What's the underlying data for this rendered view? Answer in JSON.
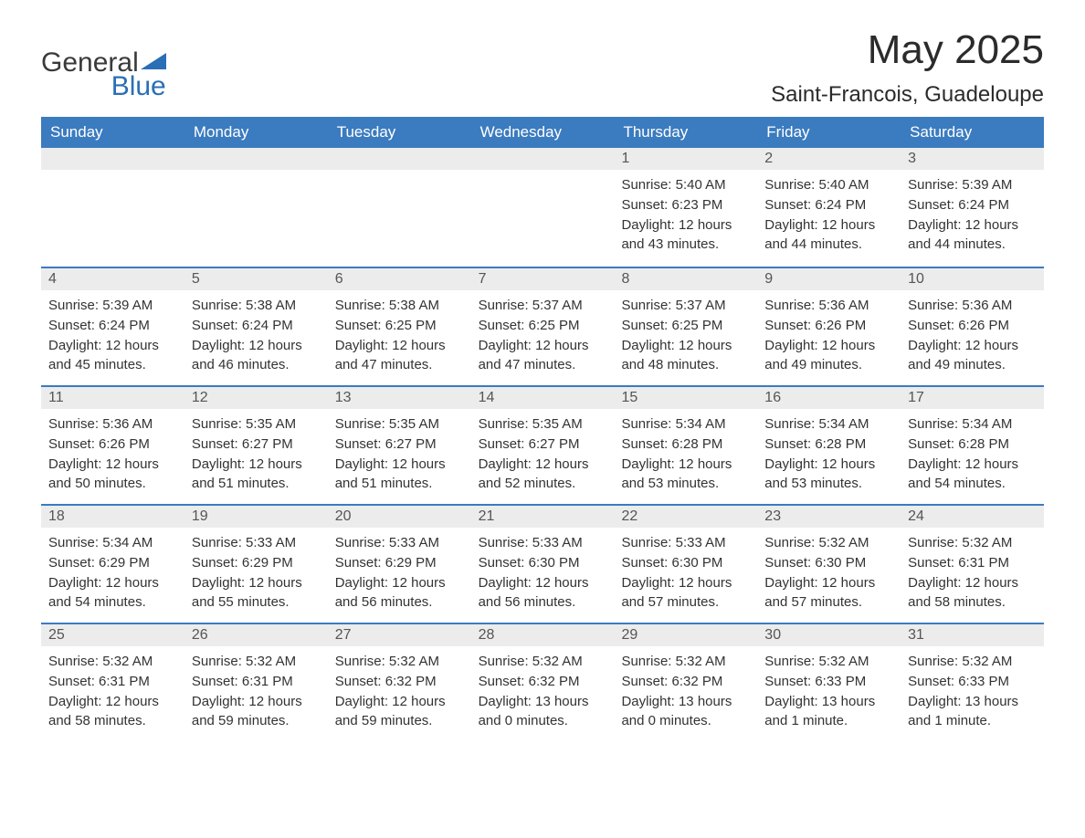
{
  "logo": {
    "text_general": "General",
    "text_blue": "Blue",
    "icon_color": "#2a6fb5"
  },
  "header": {
    "month_title": "May 2025",
    "location": "Saint-Francois, Guadeloupe"
  },
  "style": {
    "header_bg": "#3b7bbf",
    "header_text_color": "#ffffff",
    "daynum_bg": "#ececec",
    "daynum_color": "#555555",
    "body_text_color": "#333333",
    "row_border_color": "#3b7bbf",
    "page_bg": "#ffffff",
    "font_family": "Arial",
    "month_title_fontsize": 44,
    "location_fontsize": 24,
    "weekday_fontsize": 17,
    "daynum_fontsize": 16,
    "content_fontsize": 15
  },
  "weekdays": [
    "Sunday",
    "Monday",
    "Tuesday",
    "Wednesday",
    "Thursday",
    "Friday",
    "Saturday"
  ],
  "weeks": [
    [
      null,
      null,
      null,
      null,
      {
        "num": "1",
        "sunrise": "Sunrise: 5:40 AM",
        "sunset": "Sunset: 6:23 PM",
        "daylight": "Daylight: 12 hours and 43 minutes."
      },
      {
        "num": "2",
        "sunrise": "Sunrise: 5:40 AM",
        "sunset": "Sunset: 6:24 PM",
        "daylight": "Daylight: 12 hours and 44 minutes."
      },
      {
        "num": "3",
        "sunrise": "Sunrise: 5:39 AM",
        "sunset": "Sunset: 6:24 PM",
        "daylight": "Daylight: 12 hours and 44 minutes."
      }
    ],
    [
      {
        "num": "4",
        "sunrise": "Sunrise: 5:39 AM",
        "sunset": "Sunset: 6:24 PM",
        "daylight": "Daylight: 12 hours and 45 minutes."
      },
      {
        "num": "5",
        "sunrise": "Sunrise: 5:38 AM",
        "sunset": "Sunset: 6:24 PM",
        "daylight": "Daylight: 12 hours and 46 minutes."
      },
      {
        "num": "6",
        "sunrise": "Sunrise: 5:38 AM",
        "sunset": "Sunset: 6:25 PM",
        "daylight": "Daylight: 12 hours and 47 minutes."
      },
      {
        "num": "7",
        "sunrise": "Sunrise: 5:37 AM",
        "sunset": "Sunset: 6:25 PM",
        "daylight": "Daylight: 12 hours and 47 minutes."
      },
      {
        "num": "8",
        "sunrise": "Sunrise: 5:37 AM",
        "sunset": "Sunset: 6:25 PM",
        "daylight": "Daylight: 12 hours and 48 minutes."
      },
      {
        "num": "9",
        "sunrise": "Sunrise: 5:36 AM",
        "sunset": "Sunset: 6:26 PM",
        "daylight": "Daylight: 12 hours and 49 minutes."
      },
      {
        "num": "10",
        "sunrise": "Sunrise: 5:36 AM",
        "sunset": "Sunset: 6:26 PM",
        "daylight": "Daylight: 12 hours and 49 minutes."
      }
    ],
    [
      {
        "num": "11",
        "sunrise": "Sunrise: 5:36 AM",
        "sunset": "Sunset: 6:26 PM",
        "daylight": "Daylight: 12 hours and 50 minutes."
      },
      {
        "num": "12",
        "sunrise": "Sunrise: 5:35 AM",
        "sunset": "Sunset: 6:27 PM",
        "daylight": "Daylight: 12 hours and 51 minutes."
      },
      {
        "num": "13",
        "sunrise": "Sunrise: 5:35 AM",
        "sunset": "Sunset: 6:27 PM",
        "daylight": "Daylight: 12 hours and 51 minutes."
      },
      {
        "num": "14",
        "sunrise": "Sunrise: 5:35 AM",
        "sunset": "Sunset: 6:27 PM",
        "daylight": "Daylight: 12 hours and 52 minutes."
      },
      {
        "num": "15",
        "sunrise": "Sunrise: 5:34 AM",
        "sunset": "Sunset: 6:28 PM",
        "daylight": "Daylight: 12 hours and 53 minutes."
      },
      {
        "num": "16",
        "sunrise": "Sunrise: 5:34 AM",
        "sunset": "Sunset: 6:28 PM",
        "daylight": "Daylight: 12 hours and 53 minutes."
      },
      {
        "num": "17",
        "sunrise": "Sunrise: 5:34 AM",
        "sunset": "Sunset: 6:28 PM",
        "daylight": "Daylight: 12 hours and 54 minutes."
      }
    ],
    [
      {
        "num": "18",
        "sunrise": "Sunrise: 5:34 AM",
        "sunset": "Sunset: 6:29 PM",
        "daylight": "Daylight: 12 hours and 54 minutes."
      },
      {
        "num": "19",
        "sunrise": "Sunrise: 5:33 AM",
        "sunset": "Sunset: 6:29 PM",
        "daylight": "Daylight: 12 hours and 55 minutes."
      },
      {
        "num": "20",
        "sunrise": "Sunrise: 5:33 AM",
        "sunset": "Sunset: 6:29 PM",
        "daylight": "Daylight: 12 hours and 56 minutes."
      },
      {
        "num": "21",
        "sunrise": "Sunrise: 5:33 AM",
        "sunset": "Sunset: 6:30 PM",
        "daylight": "Daylight: 12 hours and 56 minutes."
      },
      {
        "num": "22",
        "sunrise": "Sunrise: 5:33 AM",
        "sunset": "Sunset: 6:30 PM",
        "daylight": "Daylight: 12 hours and 57 minutes."
      },
      {
        "num": "23",
        "sunrise": "Sunrise: 5:32 AM",
        "sunset": "Sunset: 6:30 PM",
        "daylight": "Daylight: 12 hours and 57 minutes."
      },
      {
        "num": "24",
        "sunrise": "Sunrise: 5:32 AM",
        "sunset": "Sunset: 6:31 PM",
        "daylight": "Daylight: 12 hours and 58 minutes."
      }
    ],
    [
      {
        "num": "25",
        "sunrise": "Sunrise: 5:32 AM",
        "sunset": "Sunset: 6:31 PM",
        "daylight": "Daylight: 12 hours and 58 minutes."
      },
      {
        "num": "26",
        "sunrise": "Sunrise: 5:32 AM",
        "sunset": "Sunset: 6:31 PM",
        "daylight": "Daylight: 12 hours and 59 minutes."
      },
      {
        "num": "27",
        "sunrise": "Sunrise: 5:32 AM",
        "sunset": "Sunset: 6:32 PM",
        "daylight": "Daylight: 12 hours and 59 minutes."
      },
      {
        "num": "28",
        "sunrise": "Sunrise: 5:32 AM",
        "sunset": "Sunset: 6:32 PM",
        "daylight": "Daylight: 13 hours and 0 minutes."
      },
      {
        "num": "29",
        "sunrise": "Sunrise: 5:32 AM",
        "sunset": "Sunset: 6:32 PM",
        "daylight": "Daylight: 13 hours and 0 minutes."
      },
      {
        "num": "30",
        "sunrise": "Sunrise: 5:32 AM",
        "sunset": "Sunset: 6:33 PM",
        "daylight": "Daylight: 13 hours and 1 minute."
      },
      {
        "num": "31",
        "sunrise": "Sunrise: 5:32 AM",
        "sunset": "Sunset: 6:33 PM",
        "daylight": "Daylight: 13 hours and 1 minute."
      }
    ]
  ]
}
